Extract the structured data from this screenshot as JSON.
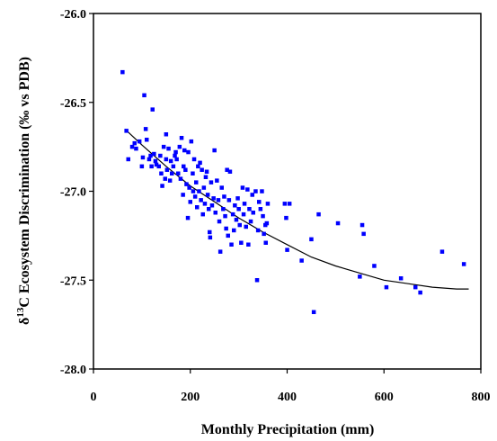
{
  "chart_data": {
    "type": "scatter",
    "xlabel": "Monthly Precipitation (mm)",
    "ylabel_parts": {
      "delta": "δ",
      "sup": "13",
      "rest": "C Ecosystem Discrimination (‰ vs PDB)"
    },
    "xlim": [
      0,
      800
    ],
    "ylim": [
      -28.0,
      -26.0
    ],
    "x_ticks": [
      0,
      200,
      400,
      600,
      800
    ],
    "y_ticks": [
      -26.0,
      -26.5,
      -27.0,
      -27.5,
      -28.0
    ],
    "y_tick_labels": [
      "-26.0",
      "-26.5",
      "-27.0",
      "-27.5",
      "-28.0"
    ],
    "grid": false,
    "marker_color": "#0000ff",
    "trend_color": "#000000",
    "points": [
      [
        60,
        -26.33
      ],
      [
        68,
        -26.66
      ],
      [
        72,
        -26.82
      ],
      [
        80,
        -26.75
      ],
      [
        85,
        -26.73
      ],
      [
        88,
        -26.76
      ],
      [
        95,
        -26.72
      ],
      [
        100,
        -26.86
      ],
      [
        102,
        -26.81
      ],
      [
        105,
        -26.46
      ],
      [
        108,
        -26.65
      ],
      [
        110,
        -26.71
      ],
      [
        115,
        -26.82
      ],
      [
        118,
        -26.8
      ],
      [
        120,
        -26.86
      ],
      [
        122,
        -26.54
      ],
      [
        125,
        -26.79
      ],
      [
        128,
        -26.83
      ],
      [
        130,
        -26.85
      ],
      [
        135,
        -26.86
      ],
      [
        138,
        -26.8
      ],
      [
        140,
        -26.9
      ],
      [
        142,
        -26.97
      ],
      [
        145,
        -26.75
      ],
      [
        148,
        -26.93
      ],
      [
        150,
        -26.68
      ],
      [
        150,
        -26.82
      ],
      [
        152,
        -26.88
      ],
      [
        155,
        -26.76
      ],
      [
        158,
        -26.94
      ],
      [
        160,
        -26.83
      ],
      [
        162,
        -26.9
      ],
      [
        165,
        -26.86
      ],
      [
        168,
        -26.8
      ],
      [
        170,
        -26.78
      ],
      [
        172,
        -26.82
      ],
      [
        175,
        -26.9
      ],
      [
        178,
        -26.75
      ],
      [
        180,
        -26.93
      ],
      [
        182,
        -26.7
      ],
      [
        185,
        -27.02
      ],
      [
        186,
        -26.86
      ],
      [
        188,
        -26.77
      ],
      [
        190,
        -26.88
      ],
      [
        192,
        -26.96
      ],
      [
        195,
        -27.15
      ],
      [
        196,
        -26.78
      ],
      [
        198,
        -26.98
      ],
      [
        200,
        -27.06
      ],
      [
        202,
        -26.72
      ],
      [
        205,
        -26.9
      ],
      [
        206,
        -27.0
      ],
      [
        208,
        -26.82
      ],
      [
        210,
        -27.03
      ],
      [
        212,
        -26.95
      ],
      [
        214,
        -27.09
      ],
      [
        216,
        -26.86
      ],
      [
        218,
        -27.0
      ],
      [
        220,
        -26.84
      ],
      [
        222,
        -27.05
      ],
      [
        224,
        -26.88
      ],
      [
        226,
        -27.13
      ],
      [
        228,
        -26.98
      ],
      [
        230,
        -27.07
      ],
      [
        232,
        -26.92
      ],
      [
        234,
        -26.89
      ],
      [
        236,
        -27.02
      ],
      [
        238,
        -27.1
      ],
      [
        240,
        -27.23
      ],
      [
        241,
        -27.26
      ],
      [
        243,
        -26.95
      ],
      [
        245,
        -27.08
      ],
      [
        248,
        -27.04
      ],
      [
        250,
        -26.77
      ],
      [
        252,
        -27.12
      ],
      [
        255,
        -26.94
      ],
      [
        258,
        -27.05
      ],
      [
        260,
        -27.17
      ],
      [
        262,
        -27.34
      ],
      [
        265,
        -26.98
      ],
      [
        268,
        -27.1
      ],
      [
        270,
        -27.03
      ],
      [
        272,
        -27.14
      ],
      [
        274,
        -27.21
      ],
      [
        276,
        -26.88
      ],
      [
        278,
        -27.25
      ],
      [
        280,
        -27.05
      ],
      [
        282,
        -26.89
      ],
      [
        285,
        -27.3
      ],
      [
        288,
        -27.13
      ],
      [
        290,
        -27.22
      ],
      [
        292,
        -27.08
      ],
      [
        295,
        -27.16
      ],
      [
        298,
        -27.04
      ],
      [
        300,
        -27.1
      ],
      [
        302,
        -27.19
      ],
      [
        305,
        -27.29
      ],
      [
        308,
        -26.98
      ],
      [
        310,
        -27.13
      ],
      [
        312,
        -27.07
      ],
      [
        315,
        -27.2
      ],
      [
        318,
        -26.99
      ],
      [
        320,
        -27.3
      ],
      [
        322,
        -27.1
      ],
      [
        325,
        -27.17
      ],
      [
        328,
        -27.02
      ],
      [
        330,
        -27.12
      ],
      [
        335,
        -27.0
      ],
      [
        338,
        -27.5
      ],
      [
        340,
        -27.22
      ],
      [
        342,
        -27.06
      ],
      [
        345,
        -27.1
      ],
      [
        348,
        -27.0
      ],
      [
        350,
        -27.14
      ],
      [
        352,
        -27.24
      ],
      [
        355,
        -27.19
      ],
      [
        356,
        -27.29
      ],
      [
        358,
        -27.18
      ],
      [
        360,
        -27.07
      ],
      [
        395,
        -27.07
      ],
      [
        398,
        -27.15
      ],
      [
        400,
        -27.33
      ],
      [
        405,
        -27.07
      ],
      [
        430,
        -27.39
      ],
      [
        450,
        -27.27
      ],
      [
        455,
        -27.68
      ],
      [
        465,
        -27.13
      ],
      [
        505,
        -27.18
      ],
      [
        550,
        -27.48
      ],
      [
        555,
        -27.19
      ],
      [
        558,
        -27.24
      ],
      [
        580,
        -27.42
      ],
      [
        605,
        -27.54
      ],
      [
        635,
        -27.49
      ],
      [
        665,
        -27.54
      ],
      [
        675,
        -27.57
      ],
      [
        720,
        -27.34
      ],
      [
        765,
        -27.41
      ]
    ],
    "trend": [
      [
        65,
        -26.65
      ],
      [
        100,
        -26.74
      ],
      [
        150,
        -26.86
      ],
      [
        200,
        -26.97
      ],
      [
        250,
        -27.06
      ],
      [
        300,
        -27.15
      ],
      [
        350,
        -27.23
      ],
      [
        400,
        -27.3
      ],
      [
        450,
        -27.37
      ],
      [
        500,
        -27.42
      ],
      [
        550,
        -27.46
      ],
      [
        600,
        -27.5
      ],
      [
        650,
        -27.52
      ],
      [
        700,
        -27.54
      ],
      [
        750,
        -27.55
      ],
      [
        775,
        -27.55
      ]
    ]
  }
}
